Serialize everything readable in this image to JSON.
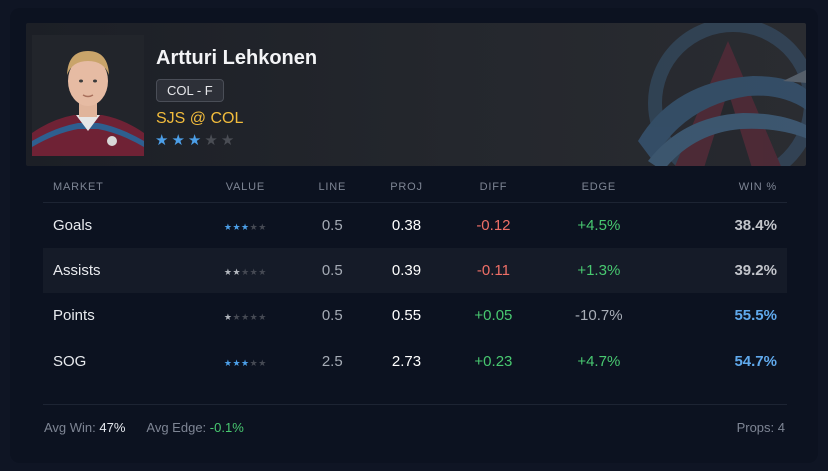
{
  "player": {
    "name": "Artturi Lehkonen",
    "position_badge": "COL - F",
    "matchup": "SJS @ COL",
    "rating": 3,
    "rating_max": 5
  },
  "colors": {
    "accent_blue": "#4c9fe8",
    "matchup_gold": "#f2bc3c",
    "positive": "#48c870",
    "negative": "#ee6f67"
  },
  "table": {
    "headers": [
      "MARKET",
      "VALUE",
      "LINE",
      "PROJ",
      "DIFF",
      "EDGE",
      "WIN %"
    ],
    "rows": [
      {
        "market": "Goals",
        "value_stars": 3,
        "line": "0.5",
        "proj": "0.38",
        "diff": "-0.12",
        "edge": "+4.5%",
        "win": "38.4%"
      },
      {
        "market": "Assists",
        "value_stars": 2,
        "line": "0.5",
        "proj": "0.39",
        "diff": "-0.11",
        "edge": "+1.3%",
        "win": "39.2%"
      },
      {
        "market": "Points",
        "value_stars": 1,
        "line": "0.5",
        "proj": "0.55",
        "diff": "+0.05",
        "edge": "-10.7%",
        "win": "55.5%"
      },
      {
        "market": "SOG",
        "value_stars": 3,
        "line": "2.5",
        "proj": "2.73",
        "diff": "+0.23",
        "edge": "+4.7%",
        "win": "54.7%"
      }
    ]
  },
  "footer": {
    "avg_win_label": "Avg Win:",
    "avg_win_value": "47%",
    "avg_edge_label": "Avg Edge:",
    "avg_edge_value": "-0.1%",
    "props_label": "Props:",
    "props_value": "4"
  },
  "icons": {
    "star": "star-icon",
    "team_logo": "avalanche-logo-icon"
  }
}
